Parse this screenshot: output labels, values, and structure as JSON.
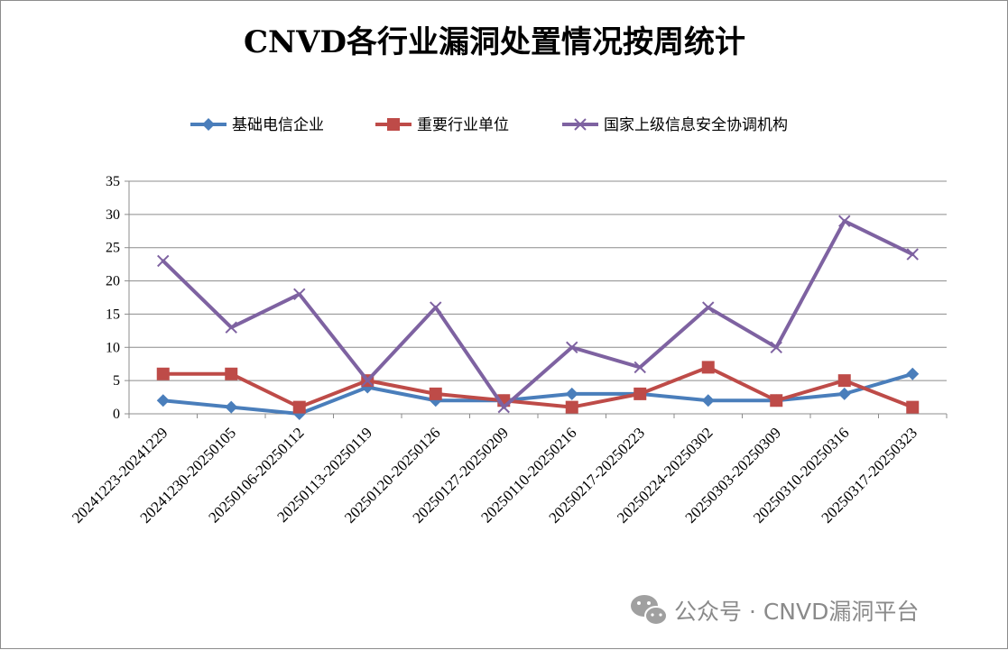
{
  "chart_data": {
    "type": "line",
    "title": "CNVD各行业漏洞处置情况按周统计",
    "categories": [
      "20241223-20241229",
      "20241230-20250105",
      "20250106-20250112",
      "20250113-20250119",
      "20250120-20250126",
      "20250127-20250209",
      "20250110-20250216",
      "20250217-20250223",
      "20250224-20250302",
      "20250303-20250309",
      "20250310-20250316",
      "20250317-20250323"
    ],
    "series": [
      {
        "name": "基础电信企业",
        "color": "#4a7ebb",
        "marker": "diamond",
        "values": [
          2,
          1,
          0,
          4,
          2,
          2,
          3,
          3,
          2,
          2,
          3,
          6
        ]
      },
      {
        "name": "重要行业单位",
        "color": "#be4b48",
        "marker": "square",
        "values": [
          6,
          6,
          1,
          5,
          3,
          2,
          1,
          3,
          7,
          2,
          5,
          1
        ]
      },
      {
        "name": "国家上级信息安全协调机构",
        "color": "#7e62a1",
        "marker": "x",
        "values": [
          23,
          13,
          18,
          5,
          16,
          1,
          10,
          7,
          16,
          10,
          29,
          24
        ]
      }
    ],
    "ylim": [
      0,
      35
    ],
    "yticks": [
      0,
      5,
      10,
      15,
      20,
      25,
      30,
      35
    ],
    "grid": true,
    "legend": "top",
    "xlabel": "",
    "ylabel": ""
  },
  "watermark": {
    "text": "公众号 · CNVD漏洞平台",
    "icon": "wechat-icon"
  }
}
